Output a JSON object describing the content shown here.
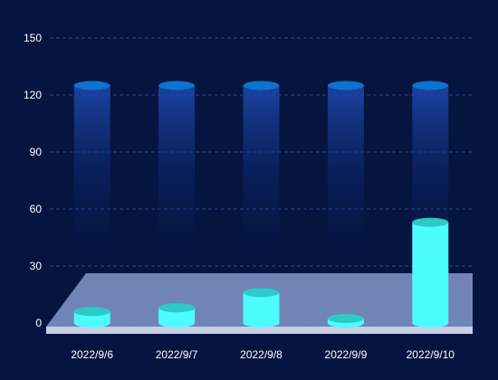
{
  "chart_data": {
    "type": "bar",
    "title": "",
    "xlabel": "",
    "ylabel": "",
    "categories": [
      "2022/9/6",
      "2022/9/7",
      "2022/9/8",
      "2022/9/9",
      "2022/9/10"
    ],
    "series": [
      {
        "values": [
          6,
          8,
          16,
          1,
          53
        ]
      }
    ],
    "background_max": 125,
    "ylim": [
      0,
      150
    ],
    "yticks": [
      0,
      30,
      60,
      90,
      120,
      150
    ],
    "grid": true,
    "colors": {
      "background": "#061440",
      "bar_body": "#4dfdfd",
      "bar_top": "#2ec9c9",
      "background_bar_top": "#0c73cf",
      "background_bar_body": "#1d4cb3",
      "floor": "#7a8ec0",
      "floor_edge": "#c6cfe6",
      "grid": "#3a5aa8",
      "text": "#ffffff"
    }
  }
}
